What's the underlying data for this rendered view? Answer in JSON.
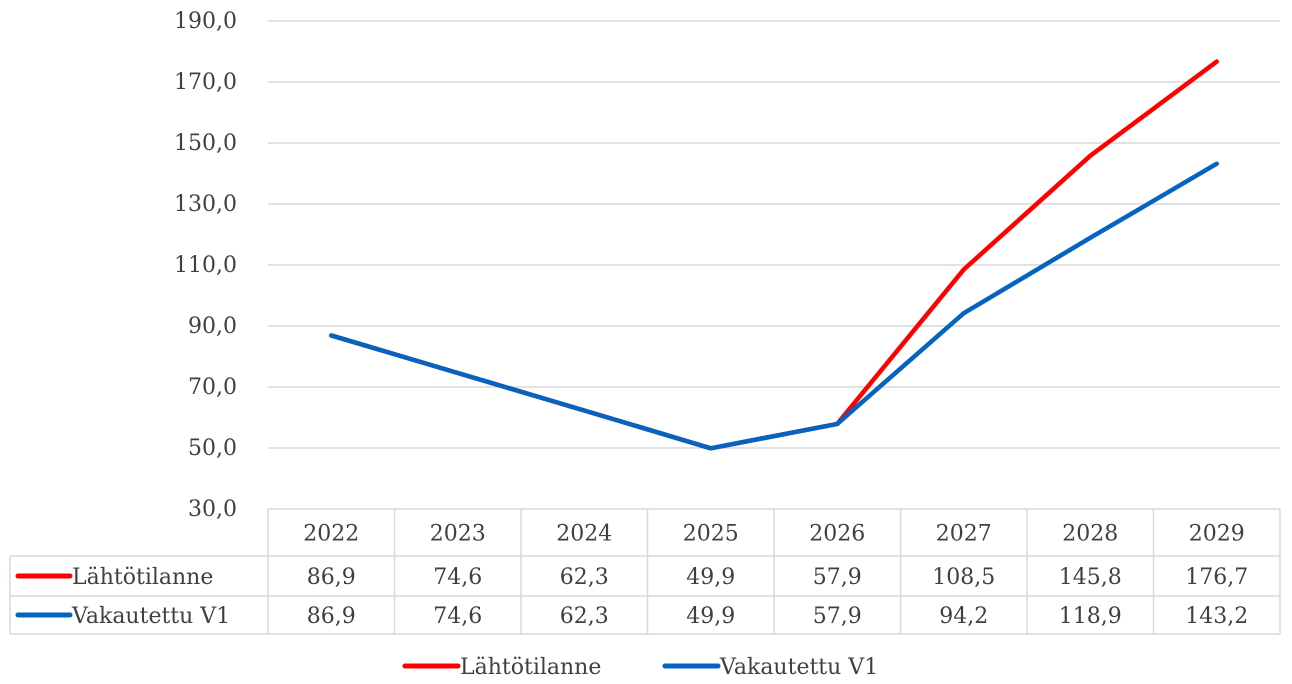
{
  "chart_data": {
    "type": "line",
    "title": "",
    "xlabel": "",
    "ylabel": "",
    "categories": [
      "2022",
      "2023",
      "2024",
      "2025",
      "2026",
      "2027",
      "2028",
      "2029"
    ],
    "ylim": [
      30.0,
      190.0
    ],
    "yticks": [
      "30,0",
      "50,0",
      "70,0",
      "90,0",
      "110,0",
      "130,0",
      "150,0",
      "170,0",
      "190,0"
    ],
    "grid": true,
    "legend_position": "bottom",
    "data_table": true,
    "series": [
      {
        "name": "Lähtötilanne",
        "color": "#ff0000",
        "values": [
          86.9,
          74.6,
          62.3,
          49.9,
          57.9,
          108.5,
          145.8,
          176.7
        ],
        "labels": [
          "86,9",
          "74,6",
          "62,3",
          "49,9",
          "57,9",
          "108,5",
          "145,8",
          "176,7"
        ]
      },
      {
        "name": "Vakautettu V1",
        "color": "#0563c1",
        "values": [
          86.9,
          74.6,
          62.3,
          49.9,
          57.9,
          94.2,
          118.9,
          143.2
        ],
        "labels": [
          "86,9",
          "74,6",
          "62,3",
          "49,9",
          "57,9",
          "94,2",
          "118,9",
          "143,2"
        ]
      }
    ]
  }
}
